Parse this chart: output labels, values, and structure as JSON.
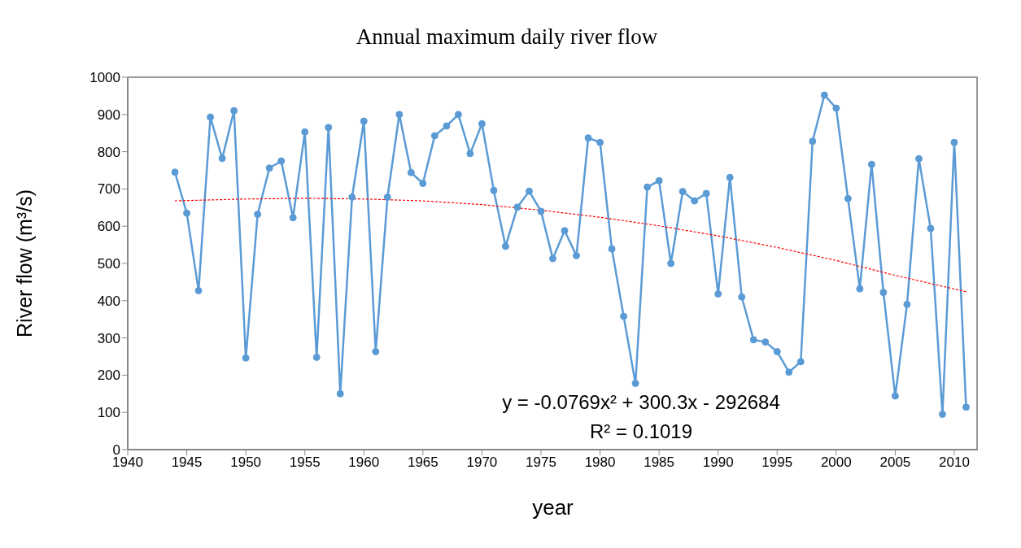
{
  "chart_data": {
    "type": "line",
    "title": "Annual maximum daily river flow",
    "xlabel": "year",
    "ylabel": "River flow (m³/s)",
    "xlim": [
      1940,
      2012
    ],
    "xticks": [
      1940,
      1945,
      1950,
      1955,
      1960,
      1965,
      1970,
      1975,
      1980,
      1985,
      1990,
      1995,
      2000,
      2005,
      2010
    ],
    "ylim": [
      0,
      1000
    ],
    "yticks": [
      0,
      100,
      200,
      300,
      400,
      500,
      600,
      700,
      800,
      900,
      1000
    ],
    "annotations": [
      "y = -0.0769x² + 300.3x - 292684",
      "R² = 0.1019"
    ],
    "series": [
      {
        "color": "#5b9bd5",
        "marker": "circle",
        "line_style": "solid",
        "x": [
          1944,
          1945,
          1946,
          1947,
          1948,
          1949,
          1950,
          1951,
          1952,
          1953,
          1954,
          1955,
          1956,
          1957,
          1958,
          1959,
          1960,
          1961,
          1962,
          1963,
          1964,
          1965,
          1966,
          1967,
          1968,
          1969,
          1970,
          1971,
          1972,
          1973,
          1974,
          1975,
          1976,
          1977,
          1978,
          1979,
          1980,
          1981,
          1982,
          1983,
          1984,
          1985,
          1986,
          1987,
          1988,
          1989,
          1990,
          1991,
          1992,
          1993,
          1994,
          1995,
          1996,
          1997,
          1998,
          1999,
          2000,
          2001,
          2002,
          2003,
          2004,
          2005,
          2006,
          2007,
          2008,
          2009,
          2010,
          2011
        ],
        "values": [
          745,
          635,
          427,
          893,
          782,
          910,
          246,
          632,
          756,
          775,
          623,
          853,
          248,
          865,
          150,
          678,
          882,
          263,
          678,
          900,
          744,
          715,
          843,
          869,
          900,
          795,
          875,
          696,
          546,
          651,
          694,
          640,
          513,
          588,
          521,
          837,
          825,
          539,
          358,
          178,
          705,
          722,
          500,
          693,
          668,
          688,
          418,
          731,
          410,
          295,
          289,
          263,
          208,
          236,
          828,
          952,
          917,
          674,
          432,
          766,
          422,
          144,
          390,
          781,
          594,
          95,
          825,
          114
        ]
      },
      {
        "type": "line",
        "color": "#ff0000",
        "marker": "none",
        "line_style": "dashed",
        "x": [
          1944,
          1950,
          1955,
          1960,
          1965,
          1970,
          1975,
          1980,
          1985,
          1990,
          1995,
          2000,
          2005,
          2011
        ],
        "values": [
          668,
          673,
          675,
          673,
          668,
          658,
          643,
          624,
          601,
          574,
          543,
          508,
          468,
          424
        ]
      }
    ]
  }
}
